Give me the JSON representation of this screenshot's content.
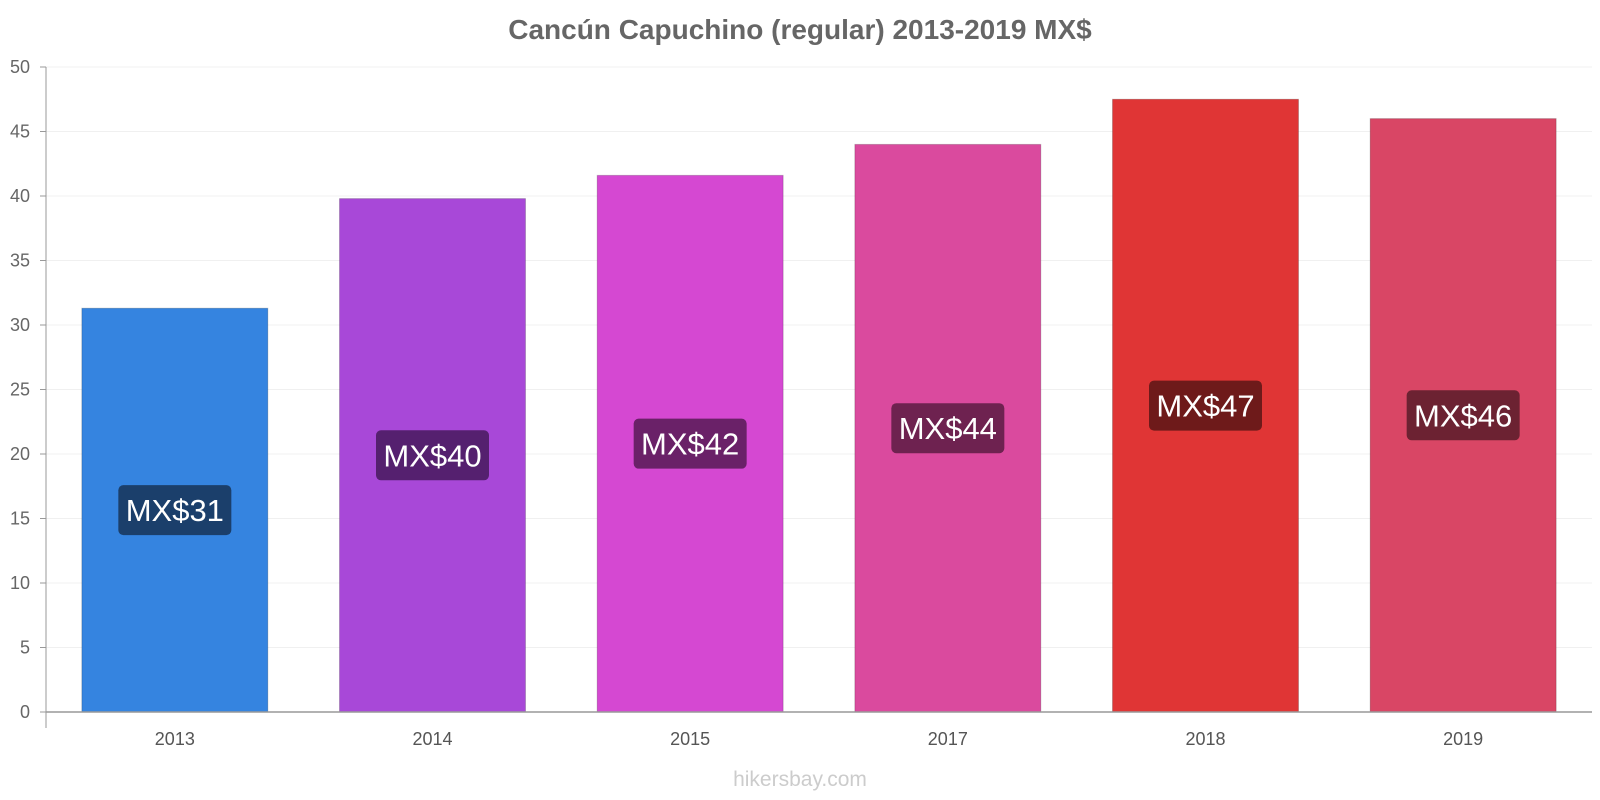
{
  "chart_data": {
    "type": "bar",
    "title": "Cancún Capuchino (regular) 2013-2019 MX$",
    "categories": [
      "2013",
      "2014",
      "2015",
      "2017",
      "2018",
      "2019"
    ],
    "values": [
      31.3,
      39.8,
      41.6,
      44.0,
      47.5,
      46.0
    ],
    "data_labels": [
      "MX$31",
      "MX$40",
      "MX$42",
      "MX$44",
      "MX$47",
      "MX$46"
    ],
    "bar_colors": [
      "#3584e0",
      "#a848d8",
      "#d548d2",
      "#da4a9e",
      "#e03535",
      "#d94665"
    ],
    "label_bg_colors": [
      "#1b3f6b",
      "#55206f",
      "#6a2168",
      "#6e2250",
      "#6e1a1a",
      "#6c2232"
    ],
    "y_ticks": [
      "0",
      "5",
      "10",
      "15",
      "20",
      "25",
      "30",
      "35",
      "40",
      "45",
      "50"
    ],
    "ylim": [
      0,
      50
    ],
    "xlabel": "",
    "ylabel": "",
    "grid": true
  },
  "watermark": "hikersbay.com"
}
